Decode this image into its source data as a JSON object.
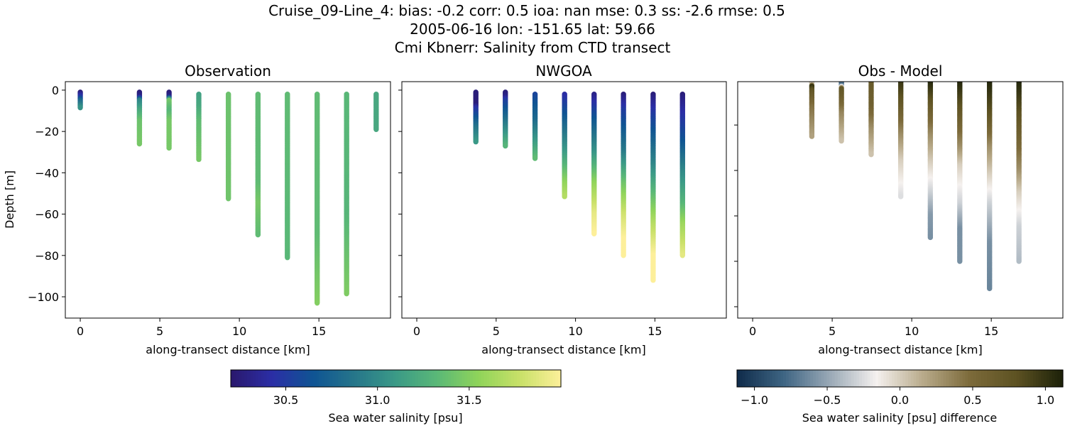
{
  "suptitle": [
    "Cruise_09-Line_4: bias: -0.2  corr: 0.5  ioa: nan  mse: 0.3  ss: -2.6  rmse: 0.5",
    "2005-06-16 lon: -151.65 lat: 59.66",
    "Cmi Kbnerr: Salinity from CTD transect"
  ],
  "chart_data": [
    {
      "type": "scatter",
      "title": "Observation",
      "xlabel": "along-transect distance [km]",
      "ylabel": "Depth [m]",
      "xlim": [
        -0.94,
        19.5
      ],
      "ylim": [
        -110.3,
        4.1
      ],
      "xticks": [
        0,
        5,
        10,
        15
      ],
      "yticks": [
        0,
        -20,
        -40,
        -60,
        -80,
        -100
      ],
      "show_yticklabels": true,
      "colormap": "haline",
      "profiles": [
        {
          "x": 0.0,
          "points": [
            [
              -1,
              30.25
            ],
            [
              -3,
              30.45
            ],
            [
              -5,
              30.75
            ],
            [
              -8.5,
              31.05
            ]
          ]
        },
        {
          "x": 3.72,
          "points": [
            [
              -1,
              30.25
            ],
            [
              -3,
              30.3
            ],
            [
              -5,
              30.95
            ],
            [
              -10,
              31.2
            ],
            [
              -15,
              31.4
            ],
            [
              -26.2,
              31.45
            ]
          ]
        },
        {
          "x": 5.58,
          "points": [
            [
              -1,
              30.25
            ],
            [
              -3,
              30.3
            ],
            [
              -5,
              31.45
            ],
            [
              -10,
              31.3
            ],
            [
              -15,
              31.45
            ],
            [
              -28,
              31.45
            ]
          ]
        },
        {
          "x": 7.45,
          "points": [
            [
              -2,
              31.15
            ],
            [
              -8,
              31.2
            ],
            [
              -15,
              31.35
            ],
            [
              -33.9,
              31.45
            ]
          ]
        },
        {
          "x": 9.31,
          "points": [
            [
              -2,
              31.4
            ],
            [
              -52.5,
              31.42
            ]
          ]
        },
        {
          "x": 11.17,
          "points": [
            [
              -2,
              31.35
            ],
            [
              -45,
              31.35
            ],
            [
              -55,
              31.45
            ],
            [
              -70.3,
              31.35
            ]
          ]
        },
        {
          "x": 13.02,
          "points": [
            [
              -2,
              31.35
            ],
            [
              -81,
              31.32
            ]
          ]
        },
        {
          "x": 14.89,
          "points": [
            [
              -2,
              31.35
            ],
            [
              -70,
              31.35
            ],
            [
              -103.4,
              31.5
            ]
          ]
        },
        {
          "x": 16.74,
          "points": [
            [
              -2,
              31.32
            ],
            [
              -60,
              31.3
            ],
            [
              -98.5,
              31.48
            ]
          ]
        },
        {
          "x": 18.6,
          "points": [
            [
              -2,
              31.2
            ],
            [
              -19.4,
              31.2
            ]
          ]
        }
      ]
    },
    {
      "type": "scatter",
      "title": "NWGOA",
      "xlabel": "along-transect distance [km]",
      "xlim": [
        -0.94,
        19.5
      ],
      "ylim": [
        -110.3,
        4.1
      ],
      "xticks": [
        0,
        5,
        10,
        15
      ],
      "yticks": [
        0,
        -20,
        -40,
        -60,
        -80,
        -100
      ],
      "show_yticklabels": false,
      "colormap": "haline",
      "profiles": [
        {
          "x": 3.72,
          "points": [
            [
              -1,
              30.25
            ],
            [
              -7,
              30.25
            ],
            [
              -9,
              30.45
            ],
            [
              -18,
              30.85
            ],
            [
              -25.2,
              31.1
            ]
          ]
        },
        {
          "x": 5.58,
          "points": [
            [
              -1,
              30.25
            ],
            [
              -3,
              30.3
            ],
            [
              -5,
              30.5
            ],
            [
              -15,
              30.85
            ],
            [
              -27.2,
              31.3
            ]
          ]
        },
        {
          "x": 7.45,
          "points": [
            [
              -2,
              30.55
            ],
            [
              -15,
              30.8
            ],
            [
              -33,
              31.35
            ]
          ]
        },
        {
          "x": 9.31,
          "points": [
            [
              -2,
              30.4
            ],
            [
              -10,
              30.6
            ],
            [
              -30,
              31.1
            ],
            [
              -45,
              31.55
            ],
            [
              -51.8,
              31.7
            ]
          ]
        },
        {
          "x": 11.17,
          "points": [
            [
              -2,
              30.3
            ],
            [
              -12,
              30.6
            ],
            [
              -30,
              31.05
            ],
            [
              -45,
              31.55
            ],
            [
              -60,
              31.9
            ],
            [
              -69.6,
              32.0
            ]
          ]
        },
        {
          "x": 13.02,
          "points": [
            [
              -2,
              30.25
            ],
            [
              -10,
              30.5
            ],
            [
              -30,
              30.9
            ],
            [
              -45,
              31.4
            ],
            [
              -60,
              31.8
            ],
            [
              -72,
              32.0
            ],
            [
              -80.4,
              32.0
            ]
          ]
        },
        {
          "x": 14.89,
          "points": [
            [
              -2,
              30.25
            ],
            [
              -12,
              30.5
            ],
            [
              -35,
              30.95
            ],
            [
              -55,
              31.45
            ],
            [
              -65,
              31.7
            ],
            [
              -80,
              32.0
            ],
            [
              -92,
              32.0
            ]
          ]
        },
        {
          "x": 16.74,
          "points": [
            [
              -2,
              30.25
            ],
            [
              -10,
              30.4
            ],
            [
              -25,
              30.65
            ],
            [
              -40,
              31.0
            ],
            [
              -55,
              31.3
            ],
            [
              -65,
              31.6
            ],
            [
              -80.4,
              31.9
            ]
          ]
        }
      ]
    },
    {
      "type": "scatter",
      "title": "Obs - Model",
      "xlabel": "along-transect distance [km]",
      "xlim": [
        -0.94,
        19.5
      ],
      "ylim": [
        -105,
        -0.9
      ],
      "xticks": [
        0,
        5,
        10,
        15
      ],
      "yticks": [
        -20,
        -40,
        -60,
        -80,
        -100
      ],
      "show_yticklabels": false,
      "colormap": "diff",
      "profiles": [
        {
          "x": 3.72,
          "points": [
            [
              -1,
              0.25
            ],
            [
              -2,
              0.0
            ],
            [
              -3,
              1.0
            ],
            [
              -5,
              0.75
            ],
            [
              -12,
              0.45
            ],
            [
              -25.2,
              0.2
            ]
          ]
        },
        {
          "x": 5.58,
          "points": [
            [
              -1,
              -0.9
            ],
            [
              -2.5,
              -0.7
            ],
            [
              -4,
              0.75
            ],
            [
              -8,
              0.65
            ],
            [
              -15,
              0.35
            ],
            [
              -27.2,
              0.05
            ]
          ]
        },
        {
          "x": 7.45,
          "points": [
            [
              -1,
              0.7
            ],
            [
              -12,
              0.6
            ],
            [
              -22,
              0.3
            ],
            [
              -33,
              0.05
            ]
          ]
        },
        {
          "x": 9.31,
          "points": [
            [
              -1,
              1.0
            ],
            [
              -10,
              0.75
            ],
            [
              -25,
              0.3
            ],
            [
              -36,
              0.0
            ],
            [
              -51.8,
              -0.25
            ]
          ]
        },
        {
          "x": 11.17,
          "points": [
            [
              -1,
              1.1
            ],
            [
              -12,
              0.7
            ],
            [
              -25,
              0.3
            ],
            [
              -37,
              0.0
            ],
            [
              -50,
              -0.3
            ],
            [
              -60,
              -0.55
            ],
            [
              -69.6,
              -0.6
            ]
          ]
        },
        {
          "x": 13.02,
          "points": [
            [
              -1,
              1.1
            ],
            [
              -12,
              0.8
            ],
            [
              -30,
              0.3
            ],
            [
              -38,
              0.0
            ],
            [
              -55,
              -0.3
            ],
            [
              -66,
              -0.6
            ],
            [
              -80.4,
              -0.6
            ]
          ]
        },
        {
          "x": 14.89,
          "points": [
            [
              -1,
              1.1
            ],
            [
              -15,
              0.8
            ],
            [
              -30,
              0.3
            ],
            [
              -42,
              0.0
            ],
            [
              -55,
              -0.3
            ],
            [
              -72,
              -0.6
            ],
            [
              -92,
              -0.65
            ]
          ]
        },
        {
          "x": 16.74,
          "points": [
            [
              -1,
              1.1
            ],
            [
              -15,
              0.8
            ],
            [
              -40,
              0.3
            ],
            [
              -50,
              0.0
            ],
            [
              -65,
              -0.3
            ],
            [
              -80.4,
              -0.4
            ]
          ]
        }
      ]
    }
  ],
  "colorbars": [
    {
      "label": "Sea water salinity [psu]",
      "colormap": "haline",
      "range": [
        30.2,
        32.0
      ],
      "ticks": [
        "30.5",
        "31.0",
        "31.5"
      ],
      "tick_values": [
        30.5,
        31.0,
        31.5
      ]
    },
    {
      "label": "Sea water salinity [psu] difference",
      "colormap": "diff",
      "range": [
        -1.12,
        1.12
      ],
      "ticks": [
        "−1.0",
        "−0.5",
        "0.0",
        "0.5",
        "1.0"
      ],
      "tick_values": [
        -1.0,
        -0.5,
        0.0,
        0.5,
        1.0
      ]
    }
  ],
  "colormaps": {
    "haline": [
      "#2a186c",
      "#2b2ea6",
      "#0f5493",
      "#26768a",
      "#3b9a87",
      "#5ab877",
      "#8fd45a",
      "#c8e068",
      "#fdef9a"
    ],
    "diff": [
      "#0f2b4a",
      "#3e6583",
      "#9aa9b6",
      "#f5f1ef",
      "#b8aa8a",
      "#7c6a3a",
      "#5d5222",
      "#1c2109"
    ]
  }
}
